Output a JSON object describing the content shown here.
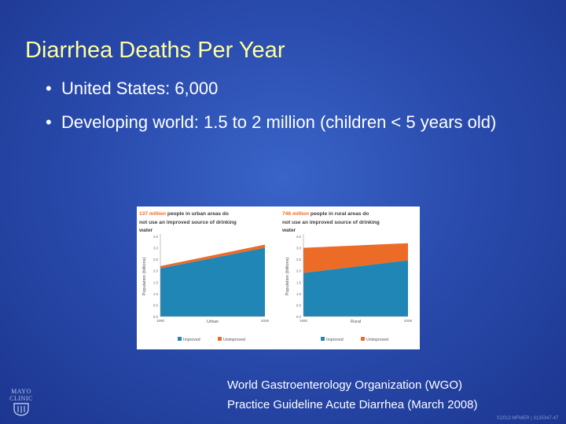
{
  "slide": {
    "title": "Diarrhea Deaths Per Year",
    "bullets": [
      "United States: 6,000",
      "Developing world: 1.5 to 2 million (children < 5 years old)"
    ],
    "citation_line1": "World Gastroenterology Organization (WGO)",
    "citation_line2": "Practice Guideline Acute Diarrhea  (March 2008)",
    "logo_text": "MAYO CLINIC",
    "copyright": "©2013 MFMER | 3135347-47"
  },
  "colors": {
    "title": "#ffff9f",
    "improved": "#1f86b5",
    "unimproved": "#ec6b26",
    "figure_heading": "#3b3b3b"
  },
  "chart_data": [
    {
      "type": "area",
      "title_highlight": "137 million",
      "title": "people in urban areas do not use an improved source of drinking water",
      "ylabel": "Population (billions)",
      "xlabel": "Urban",
      "x": [
        "1990",
        "2006"
      ],
      "ylim": [
        0,
        3.5
      ],
      "yticks": [
        "3.5",
        "3.0",
        "2.5",
        "2.0",
        "1.5",
        "1.0",
        "0.5",
        "0.0"
      ],
      "series": [
        {
          "name": "Improved",
          "values": [
            2.1,
            3.0
          ]
        },
        {
          "name": "Unimproved",
          "values": [
            0.1,
            0.14
          ]
        }
      ],
      "legend": "bottom"
    },
    {
      "type": "area",
      "title_highlight": "746 million",
      "title": "people in rural areas do not use an improved source of drinking water",
      "ylabel": "Population (billions)",
      "xlabel": "Rural",
      "x": [
        "1990",
        "2006"
      ],
      "ylim": [
        0,
        3.5
      ],
      "yticks": [
        "3.5",
        "3.0",
        "2.5",
        "2.0",
        "1.5",
        "1.0",
        "0.5",
        "0.0"
      ],
      "series": [
        {
          "name": "Improved",
          "values": [
            1.9,
            2.45
          ]
        },
        {
          "name": "Unimproved",
          "values": [
            1.1,
            0.75
          ]
        }
      ],
      "legend": "bottom"
    }
  ]
}
